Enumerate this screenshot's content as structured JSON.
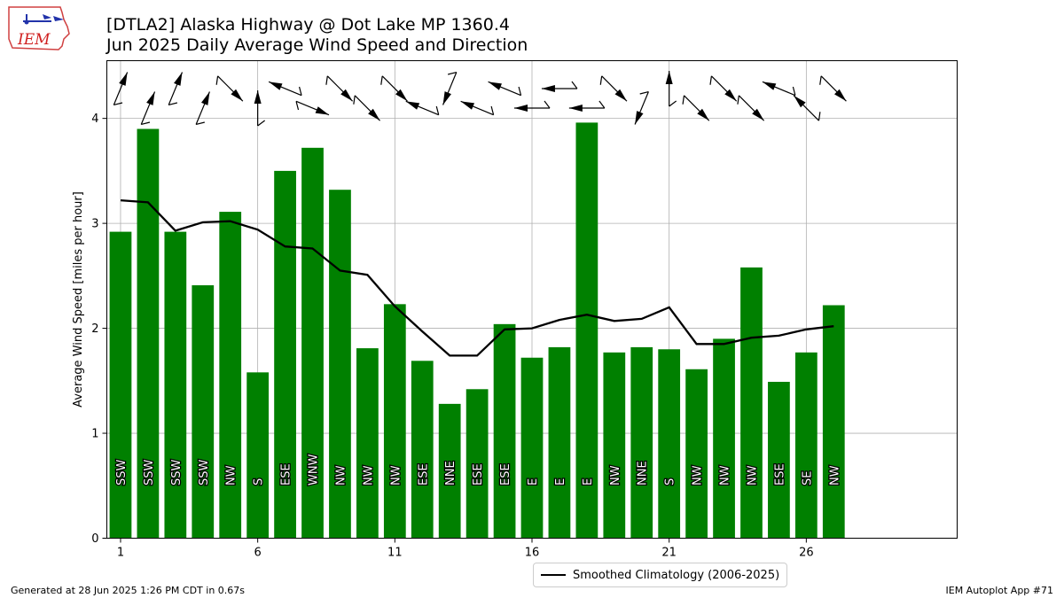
{
  "header": {
    "title_line1": "[DTLA2] Alaska Highway @ Dot Lake MP 1360.4",
    "title_line2": "Jun 2025 Daily Average Wind Speed and Direction"
  },
  "logo": {
    "text": "IEM"
  },
  "footer": {
    "generated": "Generated at 28 Jun 2025 1:26 PM CDT in 0.67s",
    "app": "IEM Autoplot App #71"
  },
  "legend": {
    "label": "Smoothed Climatology (2006-2025)"
  },
  "colors": {
    "bar": "#008000",
    "line": "#000000",
    "grid": "#b0b0b0"
  },
  "chart_data": {
    "type": "bar",
    "ylabel": "Average Wind Speed [miles per hour]",
    "xlim": [
      0.5,
      31.5
    ],
    "ylim": [
      0,
      4.55
    ],
    "xticks": [
      1,
      6,
      11,
      16,
      21,
      26
    ],
    "yticks": [
      0,
      1,
      2,
      3,
      4
    ],
    "grid": true,
    "legend_position": "bottom-center",
    "days": [
      1,
      2,
      3,
      4,
      5,
      6,
      7,
      8,
      9,
      10,
      11,
      12,
      13,
      14,
      15,
      16,
      17,
      18,
      19,
      20,
      21,
      22,
      23,
      24,
      25,
      26,
      27
    ],
    "values": [
      2.92,
      3.9,
      2.92,
      2.41,
      3.11,
      1.58,
      3.5,
      3.72,
      3.32,
      1.81,
      2.23,
      1.69,
      1.28,
      1.42,
      2.04,
      1.72,
      1.82,
      3.96,
      1.77,
      1.82,
      1.8,
      1.61,
      1.9,
      2.58,
      1.49,
      1.77,
      2.22
    ],
    "directions": [
      "SSW",
      "SSW",
      "SSW",
      "SSW",
      "NW",
      "S",
      "ESE",
      "WNW",
      "NW",
      "NW",
      "NW",
      "ESE",
      "NNE",
      "ESE",
      "ESE",
      "E",
      "E",
      "E",
      "NW",
      "NNE",
      "S",
      "NW",
      "NW",
      "NW",
      "ESE",
      "SE",
      "NW"
    ],
    "series": [
      {
        "name": "Smoothed Climatology (2006-2025)",
        "x": [
          1,
          2,
          3,
          4,
          5,
          6,
          7,
          8,
          9,
          10,
          11,
          12,
          13,
          14,
          15,
          16,
          17,
          18,
          19,
          20,
          21,
          22,
          23,
          24,
          25,
          26,
          27
        ],
        "values": [
          3.22,
          3.2,
          2.93,
          3.01,
          3.02,
          2.94,
          2.78,
          2.76,
          2.55,
          2.51,
          2.21,
          1.97,
          1.74,
          1.74,
          1.99,
          2.0,
          2.08,
          2.13,
          2.07,
          2.09,
          2.2,
          1.85,
          1.85,
          1.91,
          1.93,
          1.99,
          2.02
        ]
      }
    ]
  }
}
